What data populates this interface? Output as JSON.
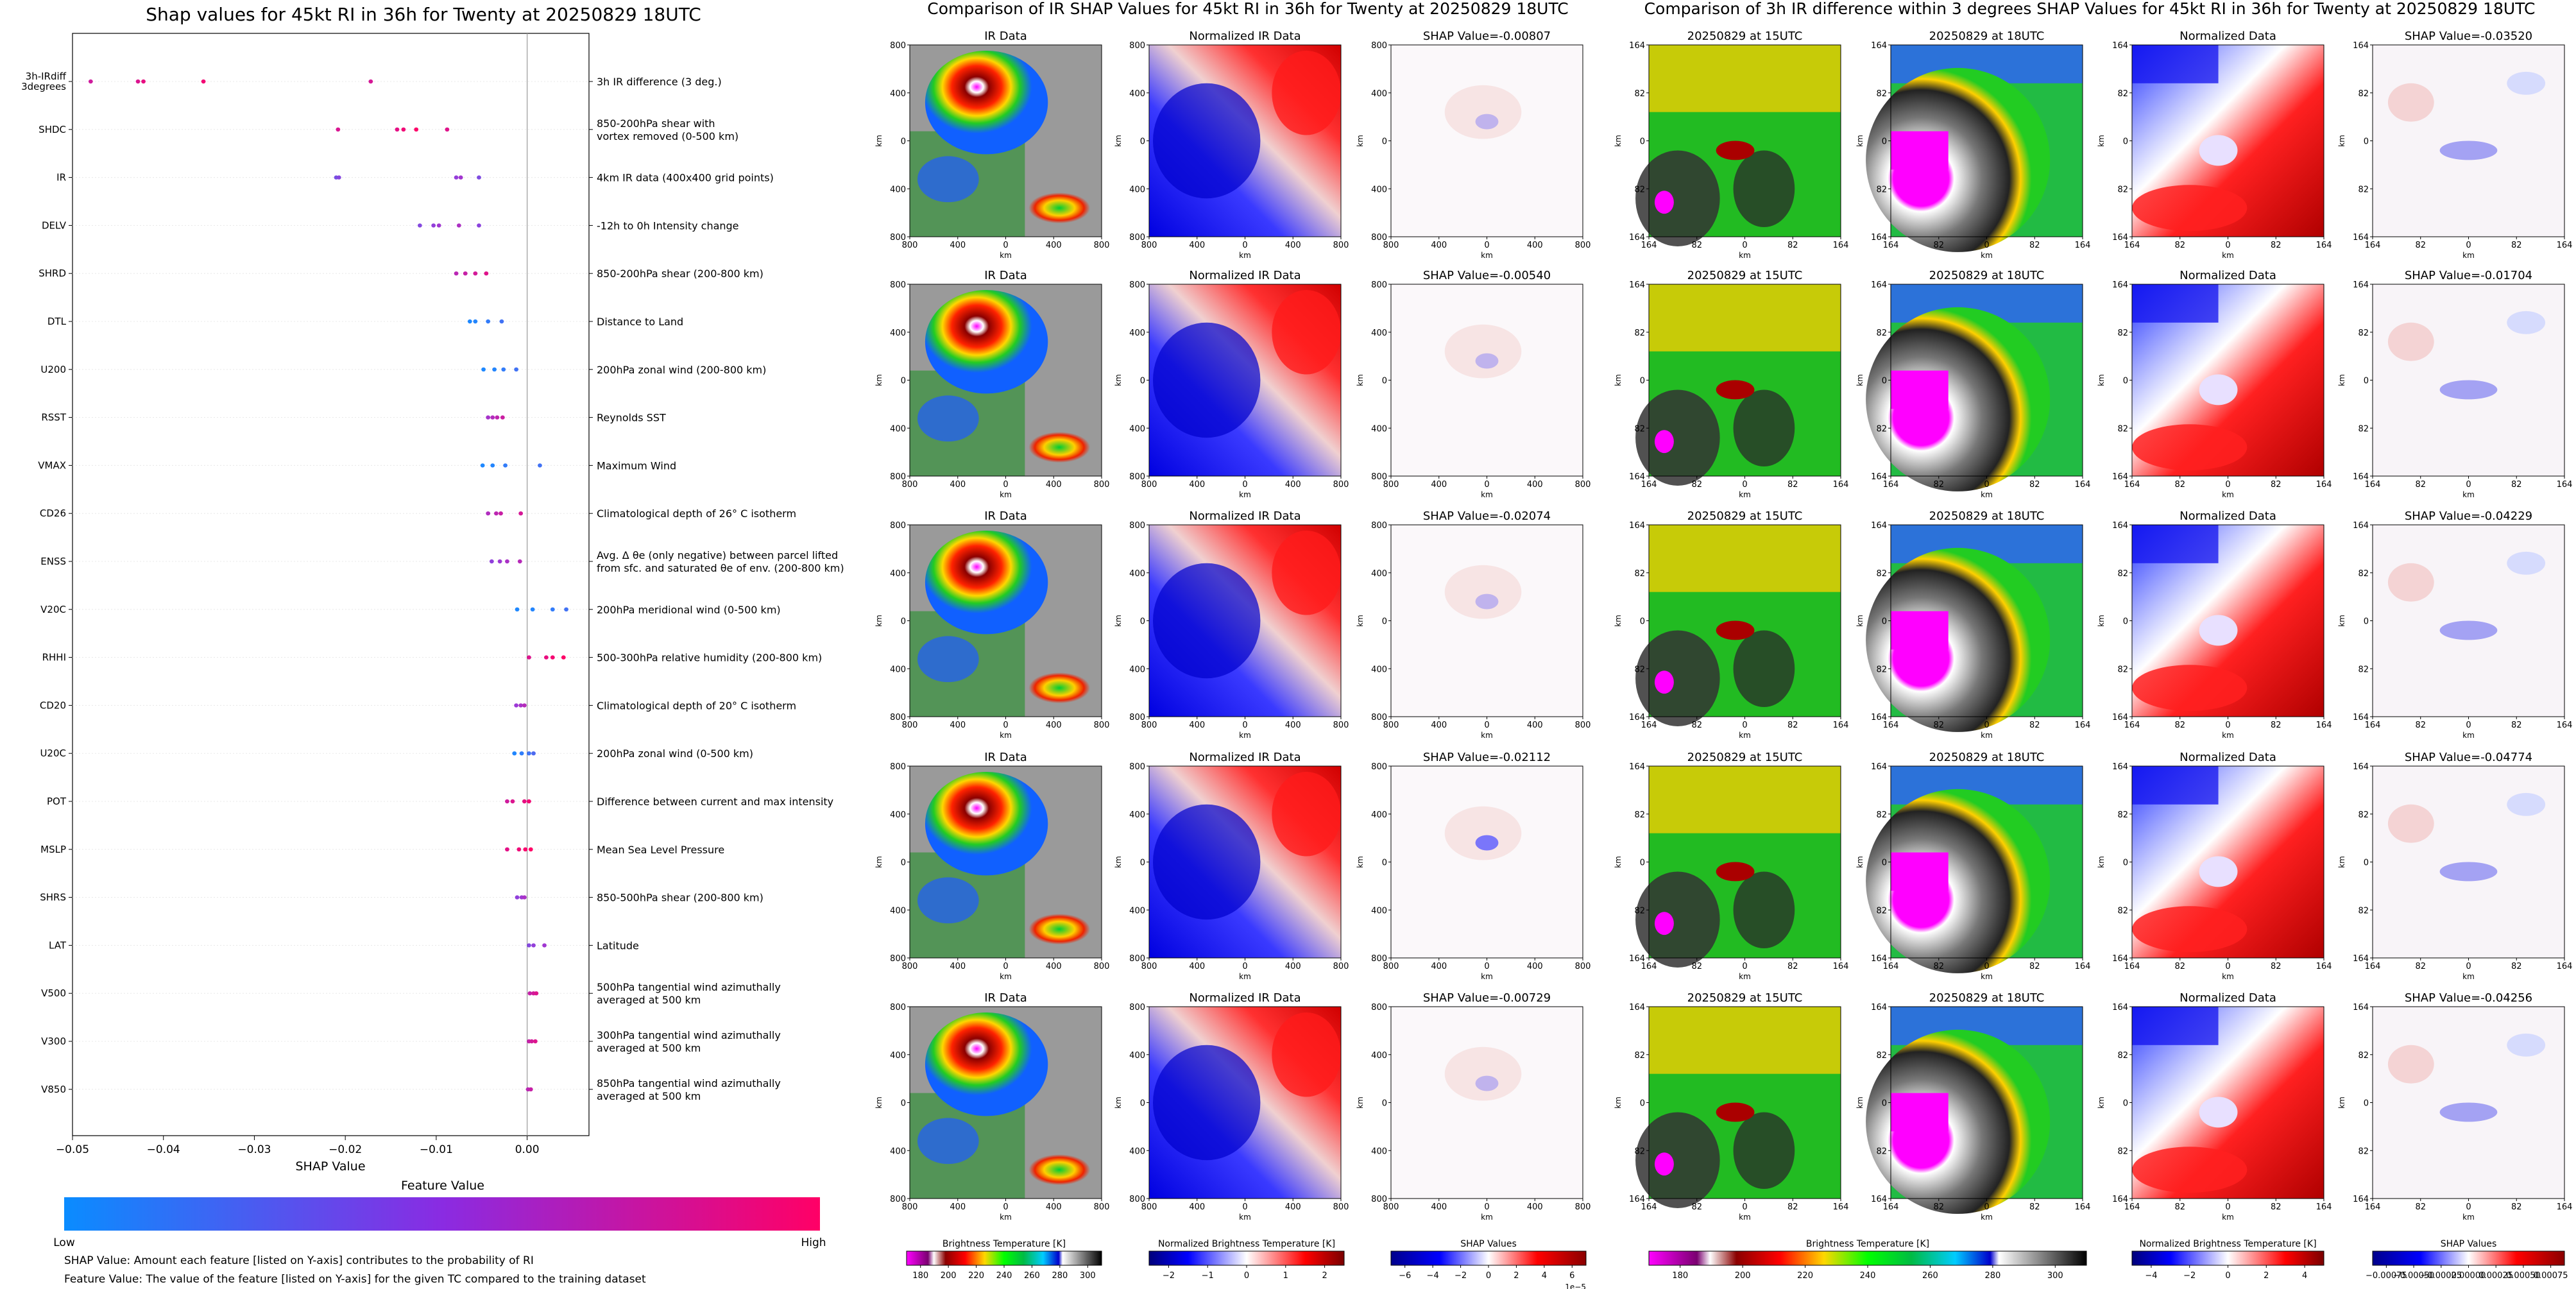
{
  "shap_panel": {
    "title": "Shap values for 45kt RI in 36h for Twenty at 20250829 18UTC",
    "xlabel": "SHAP Value",
    "xticks": [
      "−0.05",
      "−0.04",
      "−0.03",
      "−0.02",
      "−0.01",
      "0.00"
    ],
    "colorbar_title": "Feature Value",
    "colorbar_low": "Low",
    "colorbar_high": "High",
    "note1": "SHAP Value: Amount each feature [listed on Y-axis] contributes to the probability of RI",
    "note2": "Feature Value: The value of the feature [listed on Y-axis] for the given TC compared to the training dataset"
  },
  "chart_data": [
    {
      "type": "scatter",
      "title": "Shap values for 45kt RI in 36h for Twenty at 20250829 18UTC",
      "xlabel": "SHAP Value",
      "xlim": [
        -0.05,
        0.0068
      ],
      "colors": {
        "low": "#1e88ff",
        "mid": "#9a3ad8",
        "high": "#ff0066"
      },
      "features": [
        {
          "short": "3h-IRdiff\n3degrees",
          "desc": "3h IR difference (3 deg.)",
          "values": [
            -0.048,
            -0.0428,
            -0.0422,
            -0.0356,
            -0.0172
          ],
          "fv": 0.85
        },
        {
          "short": "SHDC",
          "desc": "850-200hPa shear with\nvortex removed (0-500 km)",
          "values": [
            -0.0208,
            -0.0143,
            -0.0136,
            -0.0122,
            -0.0088
          ],
          "fv": 0.9
        },
        {
          "short": "IR",
          "desc": "4km IR data (400x400 grid points)",
          "values": [
            -0.021,
            -0.0207,
            -0.0078,
            -0.0073,
            -0.0053
          ],
          "fv": 0.45
        },
        {
          "short": "DELV",
          "desc": "-12h to 0h Intensity change",
          "values": [
            -0.0118,
            -0.0103,
            -0.0097,
            -0.0075,
            -0.0053
          ],
          "fv": 0.5
        },
        {
          "short": "SHRD",
          "desc": "850-200hPa shear (200-800 km)",
          "values": [
            -0.0078,
            -0.0068,
            -0.0057,
            -0.0045
          ],
          "fv": 0.75
        },
        {
          "short": "DTL",
          "desc": "Distance to Land",
          "values": [
            -0.0063,
            -0.0057,
            -0.0043,
            -0.0028
          ],
          "fv": 0.05
        },
        {
          "short": "U200",
          "desc": "200hPa zonal wind (200-800 km)",
          "values": [
            -0.0048,
            -0.0036,
            -0.0026,
            -0.0012
          ],
          "fv": 0.05
        },
        {
          "short": "RSST",
          "desc": "Reynolds SST",
          "values": [
            -0.0043,
            -0.0038,
            -0.0033,
            -0.0027
          ],
          "fv": 0.65
        },
        {
          "short": "VMAX",
          "desc": "Maximum Wind",
          "values": [
            -0.0049,
            -0.0038,
            -0.0024,
            0.0014
          ],
          "fv": 0.05
        },
        {
          "short": "CD26",
          "desc": "Climatological depth of 26° C isotherm",
          "values": [
            -0.0043,
            -0.0034,
            -0.0029,
            -0.0007
          ],
          "fv": 0.7
        },
        {
          "short": "ENSS",
          "desc": "Avg. Δ θe (only negative) between parcel lifted\nfrom sfc. and saturated θe of env. (200-800 km)",
          "values": [
            -0.0039,
            -0.003,
            -0.0022,
            -0.0008
          ],
          "fv": 0.55
        },
        {
          "short": "V20C",
          "desc": "200hPa meridional wind (0-500 km)",
          "values": [
            -0.0011,
            0.0006,
            0.0028,
            0.0043
          ],
          "fv": 0.05
        },
        {
          "short": "RHHI",
          "desc": "500-300hPa relative humidity (200-800 km)",
          "values": [
            0.0002,
            0.0021,
            0.0028,
            0.004
          ],
          "fv": 0.92
        },
        {
          "short": "CD20",
          "desc": "Climatological depth of 20° C isotherm",
          "values": [
            -0.0012,
            -0.0007,
            -0.0003
          ],
          "fv": 0.6
        },
        {
          "short": "U20C",
          "desc": "200hPa zonal wind (0-500 km)",
          "values": [
            -0.0014,
            -0.0006,
            0.0002,
            0.0007
          ],
          "fv": 0.1
        },
        {
          "short": "POT",
          "desc": "Difference between current and max intensity",
          "values": [
            -0.0022,
            -0.0016,
            -0.0003,
            0.0002
          ],
          "fv": 0.85
        },
        {
          "short": "MSLP",
          "desc": "Mean Sea Level Pressure",
          "values": [
            -0.0022,
            -0.0009,
            -0.0002,
            0.0004
          ],
          "fv": 0.95
        },
        {
          "short": "SHRS",
          "desc": "850-500hPa shear (200-800 km)",
          "values": [
            -0.0011,
            -0.0006,
            -0.0003
          ],
          "fv": 0.55
        },
        {
          "short": "LAT",
          "desc": "Latitude",
          "values": [
            0.0002,
            0.0007,
            0.0019
          ],
          "fv": 0.5
        },
        {
          "short": "V500",
          "desc": "500hPa tangential wind azimuthally\naveraged at 500 km",
          "values": [
            0.0003,
            0.0007,
            0.001
          ],
          "fv": 0.8
        },
        {
          "short": "V300",
          "desc": "300hPa tangential wind azimuthally\naveraged at 500 km",
          "values": [
            0.0002,
            0.0005,
            0.0009
          ],
          "fv": 0.8
        },
        {
          "short": "V850",
          "desc": "850hPa tangential wind azimuthally\naveraged at 500 km",
          "values": [
            0.0001,
            0.0004
          ],
          "fv": 0.75
        }
      ]
    },
    {
      "type": "heatmap",
      "title": "Comparison of IR SHAP Values for 45kt RI in 36h for Twenty at 20250829 18UTC",
      "column_titles": [
        "IR Data",
        "Normalized IR Data"
      ],
      "shap_titles": [
        "SHAP Value=-0.00807",
        "SHAP Value=-0.00540",
        "SHAP Value=-0.02074",
        "SHAP Value=-0.02112",
        "SHAP Value=-0.00729"
      ],
      "xticks": [
        "800",
        "400",
        "0",
        "400",
        "800"
      ],
      "yticks": [
        "800",
        "400",
        "0",
        "400",
        "800"
      ],
      "axis_label": "km",
      "colorbars": [
        {
          "label": "Brightness Temperature [K]",
          "ticks": [
            "180",
            "200",
            "220",
            "240",
            "260",
            "280",
            "300"
          ]
        },
        {
          "label": "Normalized Brightness Temperature [K]",
          "ticks": [
            "−2",
            "−1",
            "0",
            "1",
            "2"
          ]
        },
        {
          "label": "SHAP Values",
          "ticks": [
            "−6",
            "−4",
            "−2",
            "0",
            "2",
            "4",
            "6"
          ],
          "scale": "1e−5"
        }
      ]
    },
    {
      "type": "heatmap",
      "title": "Comparison of 3h IR difference within 3 degrees SHAP Values for 45kt RI in 36h for Twenty at 20250829 18UTC",
      "column_titles": [
        "20250829 at 15UTC",
        "20250829 at 18UTC",
        "Normalized Data"
      ],
      "shap_titles": [
        "SHAP Value=-0.03520",
        "SHAP Value=-0.01704",
        "SHAP Value=-0.04229",
        "SHAP Value=-0.04774",
        "SHAP Value=-0.04256"
      ],
      "xticks": [
        "164",
        "82",
        "0",
        "82",
        "164"
      ],
      "yticks": [
        "164",
        "82",
        "0",
        "82",
        "164"
      ],
      "axis_label": "km",
      "colorbars": [
        {
          "label": "Brightness Temperature [K]",
          "ticks": [
            "180",
            "200",
            "220",
            "240",
            "260",
            "280",
            "300"
          ]
        },
        {
          "label": "Normalized Brightness Temperature [K]",
          "ticks": [
            "−4",
            "−2",
            "0",
            "2",
            "4"
          ]
        },
        {
          "label": "SHAP Values",
          "ticks": [
            "−0.00075",
            "−0.00050",
            "−0.00025",
            "0.00000",
            "0.00025",
            "0.00050",
            "0.00075"
          ]
        }
      ]
    }
  ]
}
